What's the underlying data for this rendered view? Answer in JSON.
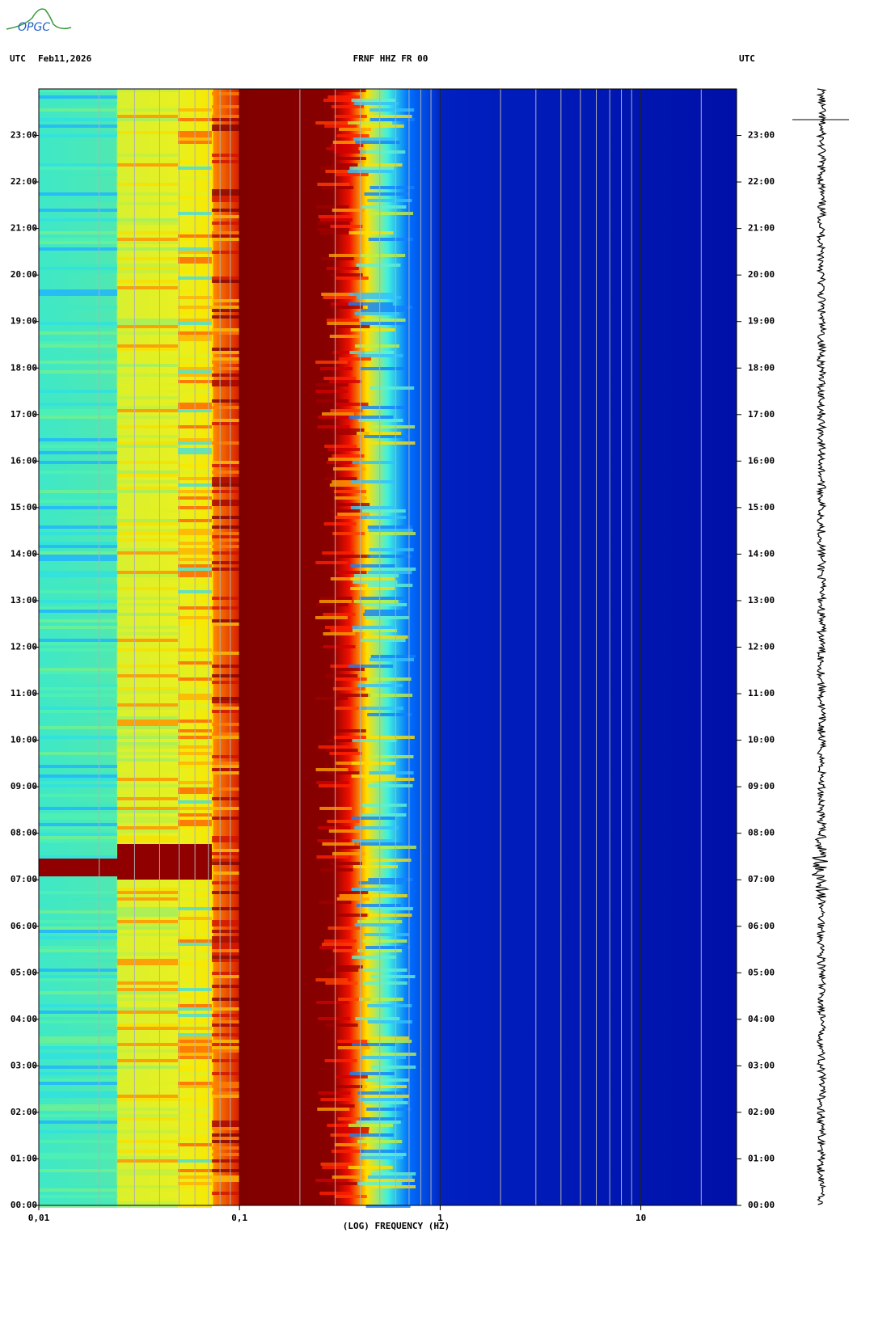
{
  "logo": "OPGC",
  "chart_data": {
    "type": "spectrogram",
    "title": "FRNF HHZ FR 00",
    "timezone_left": "UTC",
    "date": "Feb11,2026",
    "timezone_right": "UTC",
    "x_label": "(LOG) FREQUENCY (HZ)",
    "x_scale": "log",
    "xlim": [
      0.01,
      30
    ],
    "xticks": [
      {
        "value": 0.01,
        "label": "0,01"
      },
      {
        "value": 0.1,
        "label": "0,1"
      },
      1,
      10
    ],
    "minor_xticks": [
      0.02,
      0.03,
      0.04,
      0.05,
      0.06,
      0.07,
      0.08,
      0.09,
      0.2,
      0.3,
      0.4,
      0.5,
      0.6,
      0.7,
      0.8,
      0.9,
      2,
      3,
      4,
      5,
      6,
      7,
      8,
      9,
      20
    ],
    "ylim": [
      0,
      24
    ],
    "yticks": [
      {
        "value": 0,
        "label": "00:00"
      },
      {
        "value": 1,
        "label": "01:00"
      },
      {
        "value": 2,
        "label": "02:00"
      },
      {
        "value": 3,
        "label": "03:00"
      },
      {
        "value": 4,
        "label": "04:00"
      },
      {
        "value": 5,
        "label": "05:00"
      },
      {
        "value": 6,
        "label": "06:00"
      },
      {
        "value": 7,
        "label": "07:00"
      },
      {
        "value": 8,
        "label": "08:00"
      },
      {
        "value": 9,
        "label": "09:00"
      },
      {
        "value": 10,
        "label": "10:00"
      },
      {
        "value": 11,
        "label": "11:00"
      },
      {
        "value": 12,
        "label": "12:00"
      },
      {
        "value": 13,
        "label": "13:00"
      },
      {
        "value": 14,
        "label": "14:00"
      },
      {
        "value": 15,
        "label": "15:00"
      },
      {
        "value": 16,
        "label": "16:00"
      },
      {
        "value": 17,
        "label": "17:00"
      },
      {
        "value": 18,
        "label": "18:00"
      },
      {
        "value": 19,
        "label": "19:00"
      },
      {
        "value": 20,
        "label": "20:00"
      },
      {
        "value": 21,
        "label": "21:00"
      },
      {
        "value": 22,
        "label": "22:00"
      },
      {
        "value": 23,
        "label": "23:00"
      }
    ]
  }
}
